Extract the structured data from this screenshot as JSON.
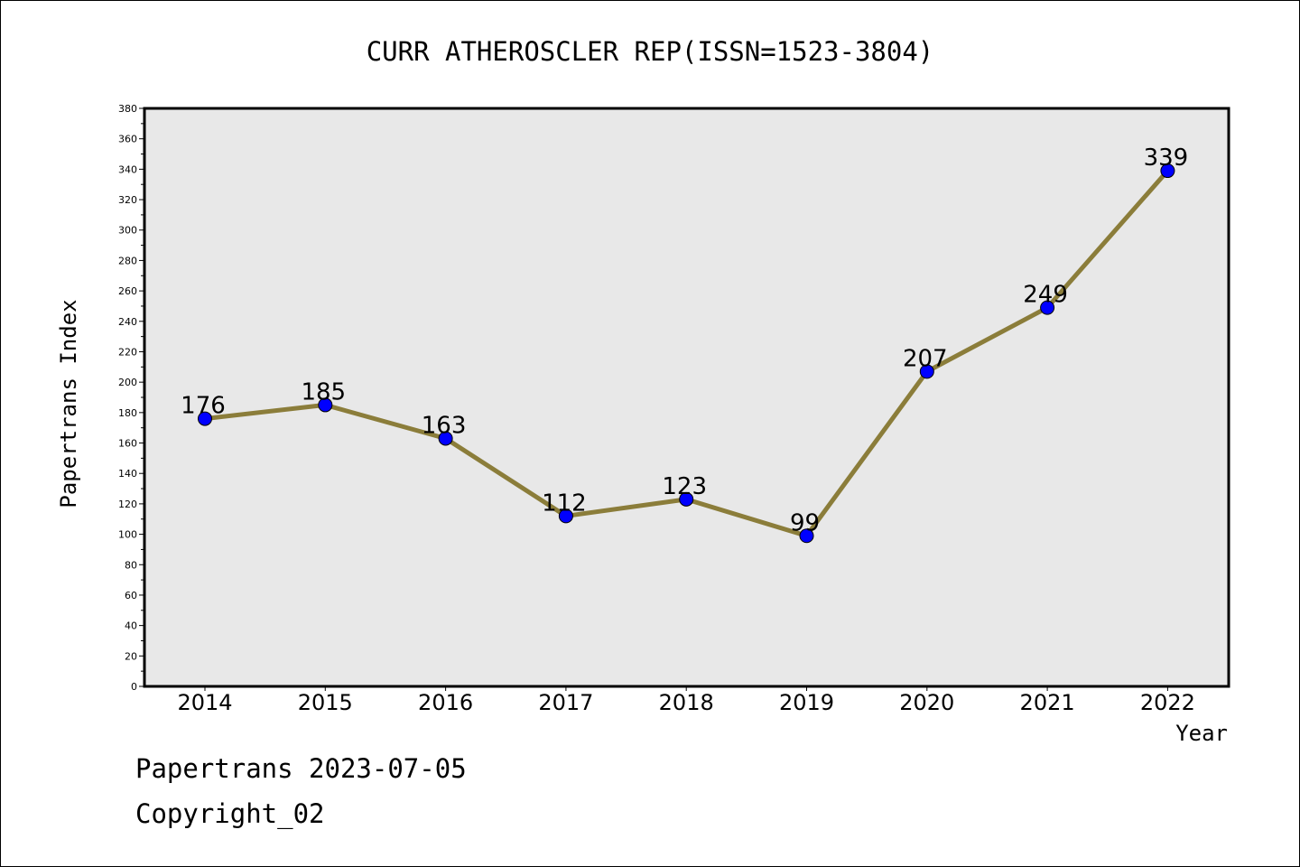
{
  "chart_data": {
    "type": "line",
    "title": "CURR ATHEROSCLER REP(ISSN=1523-3804)",
    "xlabel": "Year",
    "ylabel": "Papertrans Index",
    "categories": [
      "2014",
      "2015",
      "2016",
      "2017",
      "2018",
      "2019",
      "2020",
      "2021",
      "2022"
    ],
    "series": [
      {
        "values": [
          176,
          185,
          163,
          112,
          123,
          99,
          207,
          249,
          339
        ]
      }
    ],
    "ylim": [
      0,
      380
    ],
    "ytick_step": 20,
    "data_labels": true,
    "grid": false,
    "legend": "none",
    "colors": {
      "line": "#8b7d3a",
      "marker": "#0000ff",
      "plot_background": "#e8e8e8"
    }
  },
  "footer": {
    "line1": "Papertrans 2023-07-05",
    "line2": "Copyright_02"
  }
}
